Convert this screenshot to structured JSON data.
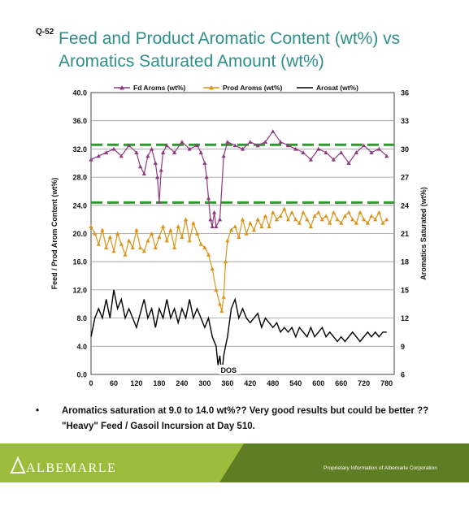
{
  "slide_label": "Q-52",
  "title_line1": "Feed and Product Aromatic Content (wt%) vs",
  "title_line2": "Aromatics Saturated Amount (wt%)",
  "bullet": {
    "marker": "•",
    "line1": "Aromatics saturation at 9.0 to 14.0 wt%??  Very good results but could be better ??",
    "line2": "\"Heavy\" Feed / Gasoil Incursion at Day 510."
  },
  "footer": {
    "logo": "ALBEMARLE",
    "note": "Proprietary Information of Albemarle Corporation"
  },
  "colors": {
    "title": "#2f8f8a",
    "feed": "#8e3a82",
    "prod": "#d9961a",
    "arosat": "#000000",
    "limit": "#2e9a2e",
    "footer_green": "#9cbc3b"
  },
  "chart_data": {
    "type": "line",
    "ylabel": "Feed / Prod Arom Content (wt%)",
    "y2label": "Aromatics Saturated (wt%)",
    "xlim": [
      0,
      800
    ],
    "ylim": [
      0,
      40
    ],
    "y2lim": [
      6,
      36
    ],
    "xticks": [
      "0",
      "60",
      "120",
      "180",
      "240",
      "300",
      "360",
      "420",
      "480",
      "540",
      "600",
      "660",
      "720",
      "780"
    ],
    "yticks": [
      "0.0",
      "4.0",
      "8.0",
      "12.0",
      "16.0",
      "20.0",
      "24.0",
      "28.0",
      "32.0",
      "36.0",
      "40.0"
    ],
    "y2ticks": [
      "6",
      "9",
      "12",
      "15",
      "18",
      "21",
      "24",
      "27",
      "30",
      "33",
      "36"
    ],
    "grid": "horizontal",
    "legend_position": "top",
    "annotation": "DOS",
    "reference_lines": [
      32.6,
      24.4
    ],
    "series": [
      {
        "name": "Fd Aroms (wt%)",
        "axis": "left",
        "marker": "triangle",
        "x": [
          0,
          20,
          40,
          60,
          80,
          100,
          120,
          130,
          140,
          150,
          160,
          170,
          175,
          180,
          185,
          190,
          200,
          220,
          240,
          260,
          280,
          290,
          300,
          305,
          310,
          315,
          320,
          325,
          330,
          340,
          350,
          360,
          380,
          400,
          420,
          440,
          460,
          480,
          500,
          520,
          540,
          560,
          580,
          600,
          620,
          640,
          660,
          680,
          700,
          720,
          740,
          760,
          780
        ],
        "y": [
          30.5,
          31,
          31.5,
          32,
          31,
          32.5,
          31.5,
          29.5,
          28.5,
          31,
          32,
          30,
          28,
          24.5,
          29,
          31.5,
          32.5,
          31.5,
          33,
          32,
          32.5,
          31.5,
          30,
          28,
          25,
          22,
          21,
          23,
          21,
          22,
          31,
          33,
          32.5,
          32,
          33,
          32.5,
          33,
          34.5,
          33,
          32.5,
          32,
          31.5,
          30.5,
          32,
          31.5,
          30.5,
          31.5,
          30,
          31.5,
          32.5,
          31.5,
          32,
          31
        ]
      },
      {
        "name": "Prod Aroms (wt%)",
        "axis": "left",
        "marker": "triangle",
        "x": [
          0,
          10,
          20,
          30,
          40,
          50,
          60,
          70,
          80,
          90,
          100,
          110,
          120,
          130,
          140,
          150,
          160,
          170,
          180,
          190,
          200,
          210,
          220,
          230,
          240,
          250,
          260,
          270,
          280,
          290,
          300,
          310,
          320,
          330,
          340,
          345,
          350,
          355,
          360,
          370,
          380,
          390,
          400,
          410,
          420,
          430,
          440,
          450,
          460,
          470,
          480,
          490,
          500,
          510,
          520,
          530,
          540,
          550,
          560,
          570,
          580,
          590,
          600,
          610,
          620,
          630,
          640,
          650,
          660,
          670,
          680,
          690,
          700,
          710,
          720,
          730,
          740,
          750,
          760,
          770,
          780
        ],
        "y": [
          21,
          20,
          18.5,
          20.5,
          18,
          19.5,
          17.5,
          20,
          18.5,
          17,
          19,
          18,
          20.5,
          18,
          17.5,
          19,
          20,
          18,
          19.5,
          21,
          19,
          20.5,
          18,
          21,
          19.5,
          22,
          19,
          21.5,
          20,
          18.5,
          18,
          17,
          15,
          12,
          10,
          9,
          11,
          16,
          19,
          20.5,
          21,
          19.5,
          22,
          20,
          21.5,
          20.5,
          22,
          21,
          22.5,
          21,
          23,
          22,
          22.5,
          23.5,
          22,
          23,
          22,
          21.5,
          23,
          22,
          21,
          22.5,
          23,
          22,
          22.5,
          21.5,
          23,
          22,
          21.5,
          22.5,
          23,
          22,
          21.5,
          23,
          22,
          21.5,
          22.5,
          22,
          23,
          21.5,
          22
        ]
      },
      {
        "name": "Arosat (wt%)",
        "axis": "right",
        "x": [
          0,
          10,
          20,
          30,
          40,
          50,
          60,
          70,
          80,
          90,
          100,
          110,
          120,
          130,
          140,
          150,
          160,
          170,
          180,
          190,
          200,
          210,
          220,
          230,
          240,
          250,
          260,
          270,
          280,
          290,
          300,
          310,
          320,
          330,
          335,
          340,
          345,
          350,
          355,
          360,
          370,
          380,
          390,
          400,
          410,
          420,
          430,
          440,
          450,
          460,
          470,
          480,
          490,
          500,
          510,
          520,
          530,
          540,
          550,
          560,
          570,
          580,
          590,
          600,
          610,
          620,
          630,
          640,
          650,
          660,
          670,
          680,
          690,
          700,
          710,
          720,
          730,
          740,
          750,
          760,
          770,
          780
        ],
        "y": [
          10,
          12,
          13,
          12,
          14,
          12,
          15,
          13,
          14,
          12,
          13,
          12,
          11,
          12.5,
          14,
          12,
          13,
          11,
          13,
          12,
          14,
          12,
          13,
          11.5,
          13,
          12,
          14,
          12,
          13,
          12,
          11,
          12,
          10,
          9,
          7,
          8,
          6,
          8,
          9,
          10,
          13,
          14,
          12,
          13,
          12,
          11.5,
          12,
          12.5,
          11,
          12,
          11.5,
          11,
          11.5,
          10.5,
          11,
          10.5,
          11,
          10,
          11,
          10.5,
          10,
          11,
          10,
          10.5,
          11,
          10,
          10.5,
          10,
          9.5,
          10,
          9.5,
          10,
          10.5,
          10,
          9.5,
          10,
          10.5,
          10,
          10.5,
          10,
          10.5,
          10.5
        ]
      }
    ]
  }
}
